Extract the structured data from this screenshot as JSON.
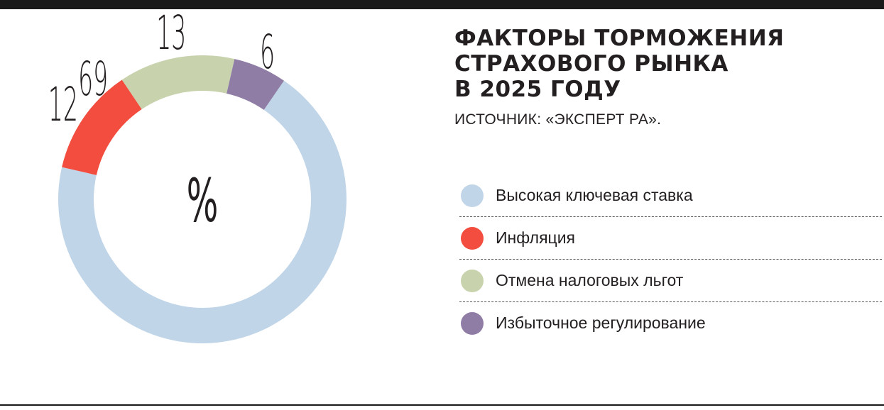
{
  "title_lines": [
    "Факторы торможения",
    "страхового рынка",
    "в 2025 году"
  ],
  "source": "ИСТОЧНИК: «ЭКСПЕРТ РА».",
  "center_label": "%",
  "chart_data": {
    "type": "pie",
    "style": "donut",
    "unit": "%",
    "categories": [
      "Высокая ключевая ставка",
      "Инфляция",
      "Отмена налоговых льгот",
      "Избыточное регулирование"
    ],
    "values": [
      69,
      12,
      13,
      6
    ],
    "colors": [
      "#c0d5e8",
      "#f24d3e",
      "#c8d3ae",
      "#8f7da6"
    ],
    "legend_position": "right"
  },
  "legend": [
    {
      "label": "Высокая ключевая ставка",
      "color": "#c0d5e8"
    },
    {
      "label": "Инфляция",
      "color": "#f24d3e"
    },
    {
      "label": "Отмена налоговых льгот",
      "color": "#c8d3ae"
    },
    {
      "label": "Избыточное регулирование",
      "color": "#8f7da6"
    }
  ]
}
